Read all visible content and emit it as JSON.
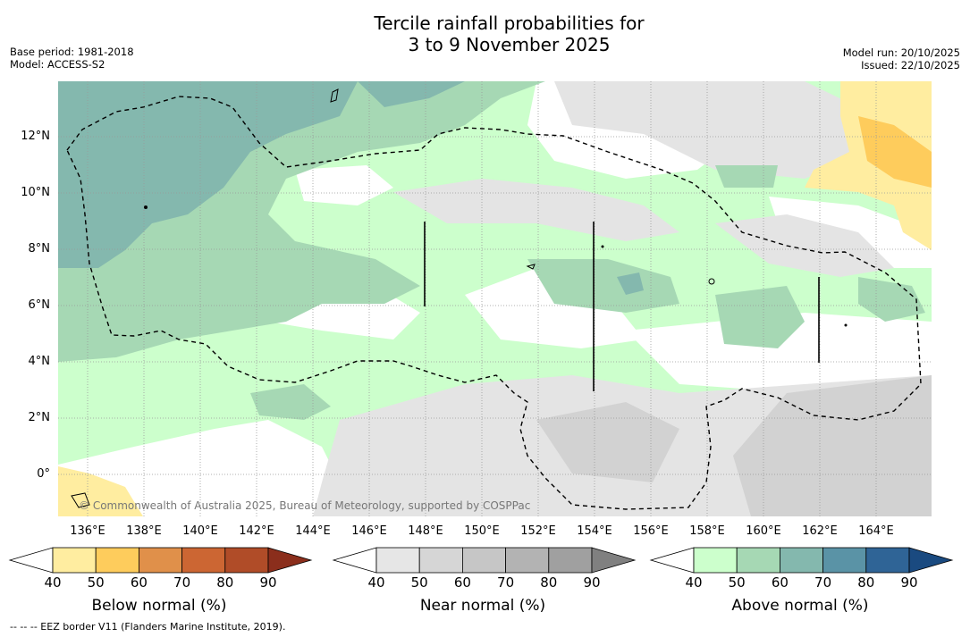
{
  "title_line1": "Tercile rainfall probabilities for",
  "title_line2": "3 to 9 November 2025",
  "base_period": "Base period: 1981-2018",
  "model": "Model: ACCESS-S2",
  "model_run": "Model run: 20/10/2025",
  "issued": "Issued: 22/10/2025",
  "copyright": "© Commonwealth of Australia 2025, Bureau of Meteorology, supported by COSPPac",
  "footer": "--  --  -- EEZ border V11 (Flanders Marine Institute, 2019).",
  "map": {
    "lat_labels": [
      "12°N",
      "10°N",
      "8°N",
      "6°N",
      "4°N",
      "2°N",
      "0°"
    ],
    "lon_labels": [
      "136°E",
      "138°E",
      "140°E",
      "142°E",
      "144°E",
      "146°E",
      "148°E",
      "150°E",
      "152°E",
      "154°E",
      "156°E",
      "158°E",
      "160°E",
      "162°E",
      "164°E"
    ]
  },
  "legends": [
    {
      "title": "Below normal (%)",
      "ticks": [
        "40",
        "50",
        "60",
        "70",
        "80",
        "90"
      ],
      "colors": [
        "#ffffff",
        "#ffeda0",
        "#fecc5c",
        "#e0904a",
        "#cc6633",
        "#b04c28",
        "#8b2e1c"
      ]
    },
    {
      "title": "Near normal (%)",
      "ticks": [
        "40",
        "50",
        "60",
        "70",
        "80",
        "90"
      ],
      "colors": [
        "#ffffff",
        "#e6e6e6",
        "#d6d6d6",
        "#c6c6c6",
        "#b3b3b3",
        "#a0a0a0",
        "#808080"
      ]
    },
    {
      "title": "Above normal (%)",
      "ticks": [
        "40",
        "50",
        "60",
        "70",
        "80",
        "90"
      ],
      "colors": [
        "#ffffff",
        "#ccffcc",
        "#a6d8b4",
        "#84b8ae",
        "#5a93a6",
        "#2f6496",
        "#1a4a80"
      ]
    }
  ]
}
